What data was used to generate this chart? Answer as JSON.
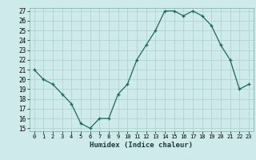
{
  "x": [
    0,
    1,
    2,
    3,
    4,
    5,
    6,
    7,
    8,
    9,
    10,
    11,
    12,
    13,
    14,
    15,
    16,
    17,
    18,
    19,
    20,
    21,
    22,
    23
  ],
  "y": [
    21,
    20,
    19.5,
    18.5,
    17.5,
    15.5,
    15,
    16,
    16,
    18.5,
    19.5,
    22,
    23.5,
    25,
    27,
    27,
    26.5,
    27,
    26.5,
    25.5,
    23.5,
    22,
    19,
    19.5
  ],
  "line_color": "#1a6b5a",
  "marker": "+",
  "bg_color": "#ceeaea",
  "grid_color": "#aed0d0",
  "xlabel": "Humidex (Indice chaleur)",
  "xlim": [
    -0.5,
    23.5
  ],
  "ylim": [
    14.7,
    27.3
  ],
  "yticks": [
    15,
    16,
    17,
    18,
    19,
    20,
    21,
    22,
    23,
    24,
    25,
    26,
    27
  ],
  "xticks": [
    0,
    1,
    2,
    3,
    4,
    5,
    6,
    7,
    8,
    9,
    10,
    11,
    12,
    13,
    14,
    15,
    16,
    17,
    18,
    19,
    20,
    21,
    22,
    23
  ]
}
